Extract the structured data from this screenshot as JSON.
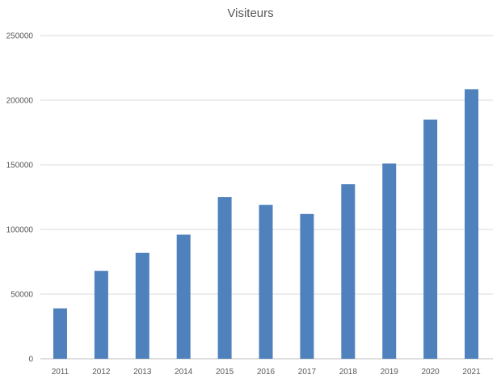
{
  "chart_data": {
    "type": "bar",
    "title": "Visiteurs",
    "xlabel": "",
    "ylabel": "",
    "categories": [
      "2011",
      "2012",
      "2013",
      "2014",
      "2015",
      "2016",
      "2017",
      "2018",
      "2019",
      "2020",
      "2021"
    ],
    "values": [
      39000,
      68000,
      82000,
      96000,
      125000,
      119000,
      112000,
      135000,
      151000,
      185000,
      208500
    ],
    "ylim": [
      0,
      250000
    ],
    "yticks": [
      0,
      50000,
      100000,
      150000,
      200000,
      250000
    ],
    "ytick_labels": [
      "0",
      "50000",
      "100000",
      "150000",
      "200000",
      "250000"
    ],
    "grid": true,
    "legend": "none",
    "bar_color": "#4f81bd"
  }
}
